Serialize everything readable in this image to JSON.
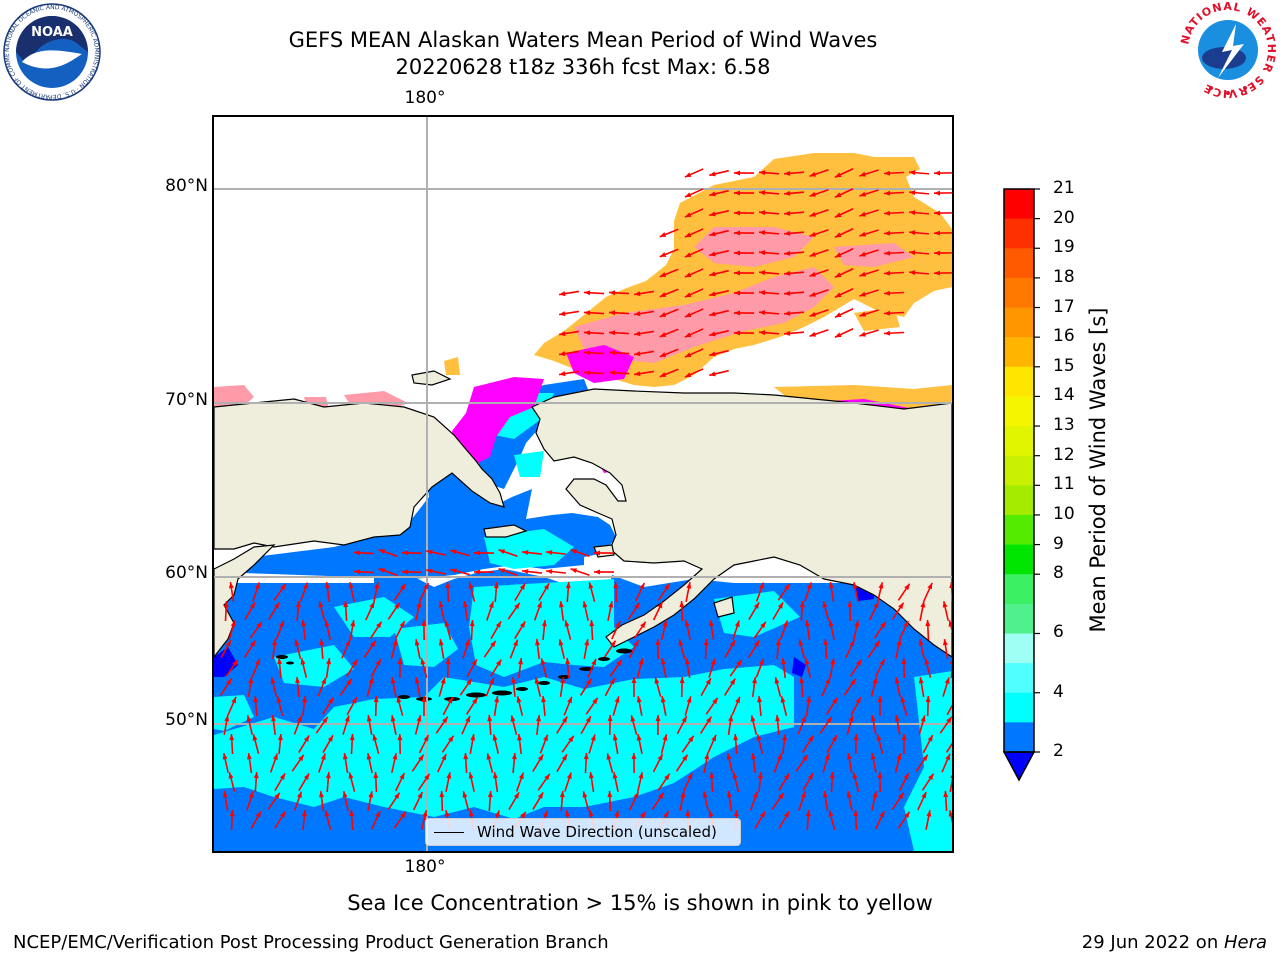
{
  "header": {
    "title_line1": "GEFS MEAN Alaskan Waters Mean Period of Wind Waves",
    "title_line2": "20220628 t18z 336h fcst   Max: 6.58",
    "noaa_logo_text": "NOAA",
    "noaa_ring_text": "NATIONAL OCEANIC AND ATMOSPHERIC ADMINISTRATION · U.S. DEPARTMENT OF COMMERCE",
    "nws_ring_text": "NATIONAL WEATHER SERVICE"
  },
  "map": {
    "lon_label_top": "180°",
    "lon_label_bottom": "180°",
    "lat_labels": [
      "80°N",
      "70°N",
      "60°N",
      "50°N"
    ],
    "legend_text": "Wind Wave Direction (unscaled)",
    "arrow_color": "#ff0000",
    "land_color": "#efeddc",
    "ocean_colors": {
      "period_2_4": "#0077ff",
      "period_4_6": "#00ffff",
      "below_2": "#0000ff"
    },
    "ice_colors": {
      "low": "#ff00ff",
      "mid": "#ff8fa0",
      "high": "#ffc040"
    }
  },
  "colorbar": {
    "label": "Mean Period of Wind Waves [s]",
    "ticks": [
      "21",
      "20",
      "19",
      "18",
      "17",
      "16",
      "15",
      "14",
      "13",
      "12",
      "11",
      "10",
      "9",
      "8",
      "6",
      "4",
      "2"
    ],
    "colors_top_to_bottom": [
      "#ff0000",
      "#ff3000",
      "#ff5a00",
      "#ff7800",
      "#ff9600",
      "#ffb400",
      "#ffe600",
      "#f5f500",
      "#e1f500",
      "#c8f000",
      "#a5eb00",
      "#55eb00",
      "#00e600",
      "#3cf064",
      "#50f08c",
      "#a0fff5",
      "#50ffff",
      "#00ffff",
      "#0077ff"
    ],
    "extend_color": "#0000ff"
  },
  "footer": {
    "note": "Sea Ice Concentration > 15% is shown in pink to yellow",
    "left": "NCEP/EMC/Verification Post Processing Product Generation Branch",
    "right_prefix": "29 Jun 2022 on ",
    "right_italic": "Hera"
  }
}
